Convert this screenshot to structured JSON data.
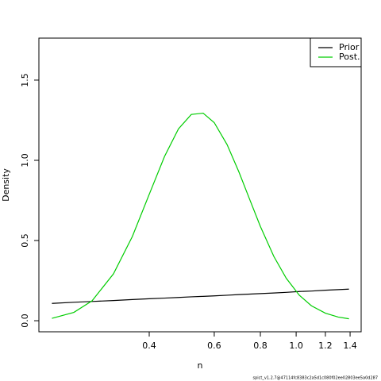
{
  "chart_data": {
    "type": "line",
    "x_label": "n",
    "y_label": "Density",
    "x": [
      0.218,
      0.25,
      0.28,
      0.32,
      0.36,
      0.4,
      0.44,
      0.48,
      0.52,
      0.56,
      0.6,
      0.65,
      0.7,
      0.75,
      0.8,
      0.87,
      0.94,
      1.02,
      1.1,
      1.2,
      1.3,
      1.39
    ],
    "series": [
      {
        "name": "Prior",
        "color": "#000000",
        "values": [
          0.108,
          0.115,
          0.12,
          0.126,
          0.132,
          0.137,
          0.141,
          0.145,
          0.149,
          0.152,
          0.155,
          0.159,
          0.163,
          0.166,
          0.169,
          0.173,
          0.177,
          0.182,
          0.185,
          0.19,
          0.194,
          0.197
        ]
      },
      {
        "name": "Post.",
        "color": "#00cd00",
        "values": [
          0.015,
          0.052,
          0.124,
          0.292,
          0.525,
          0.788,
          1.024,
          1.196,
          1.286,
          1.294,
          1.235,
          1.098,
          0.927,
          0.751,
          0.588,
          0.401,
          0.265,
          0.159,
          0.093,
          0.047,
          0.023,
          0.012
        ]
      }
    ],
    "xlim": [
      0.201,
      1.5
    ],
    "x_log": true,
    "xticks": [
      0.4,
      0.6,
      0.8,
      {
        "value": 1,
        "label": "1.0"
      },
      1.2,
      1.4
    ],
    "ylim": [
      -0.069,
      1.762
    ],
    "yticks": [
      {
        "value": 0,
        "label": "0.0"
      },
      0.5,
      {
        "value": 1,
        "label": "1.0"
      },
      1.5
    ],
    "legend_position": "top-right",
    "footnote": "spict_v1.2.7@47114fc8383c2a5d1c080f02ee02803ee5a0d287"
  }
}
